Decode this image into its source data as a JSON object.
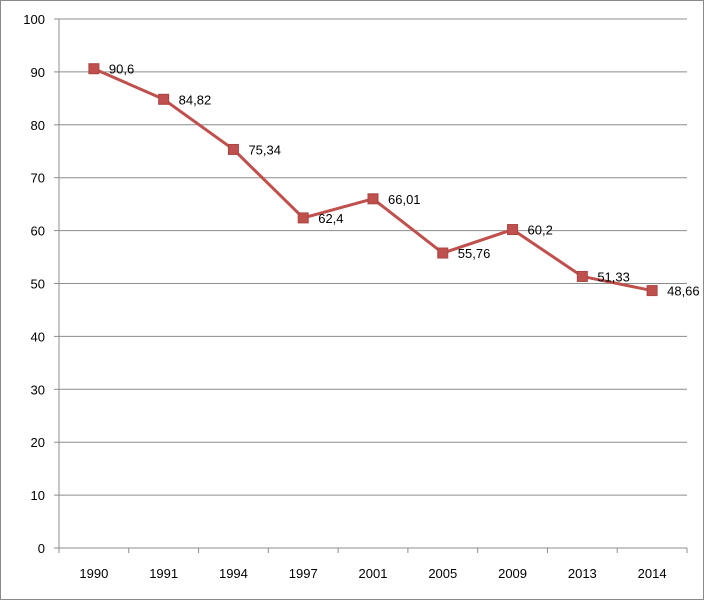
{
  "chart_data": {
    "type": "line",
    "title": "",
    "xlabel": "",
    "ylabel": "",
    "categories": [
      "1990",
      "1991",
      "1994",
      "1997",
      "2001",
      "2005",
      "2009",
      "2013",
      "2014"
    ],
    "series": [
      {
        "values": [
          90.6,
          84.82,
          75.34,
          62.4,
          66.01,
          55.76,
          60.2,
          51.33,
          48.66
        ],
        "data_labels": [
          "90,6",
          "84,82",
          "75,34",
          "62,4",
          "66,01",
          "55,76",
          "60,2",
          "51,33",
          "48,66"
        ],
        "color": "#c0504d",
        "marker": "square"
      }
    ],
    "ylim": [
      0,
      100
    ],
    "yticks": [
      0,
      10,
      20,
      30,
      40,
      50,
      60,
      70,
      80,
      90,
      100
    ],
    "ytick_labels": [
      "0",
      "10",
      "20",
      "30",
      "40",
      "50",
      "60",
      "70",
      "80",
      "90",
      "100"
    ],
    "grid": true,
    "grid_color": "#8c8c8c",
    "legend": "none"
  }
}
